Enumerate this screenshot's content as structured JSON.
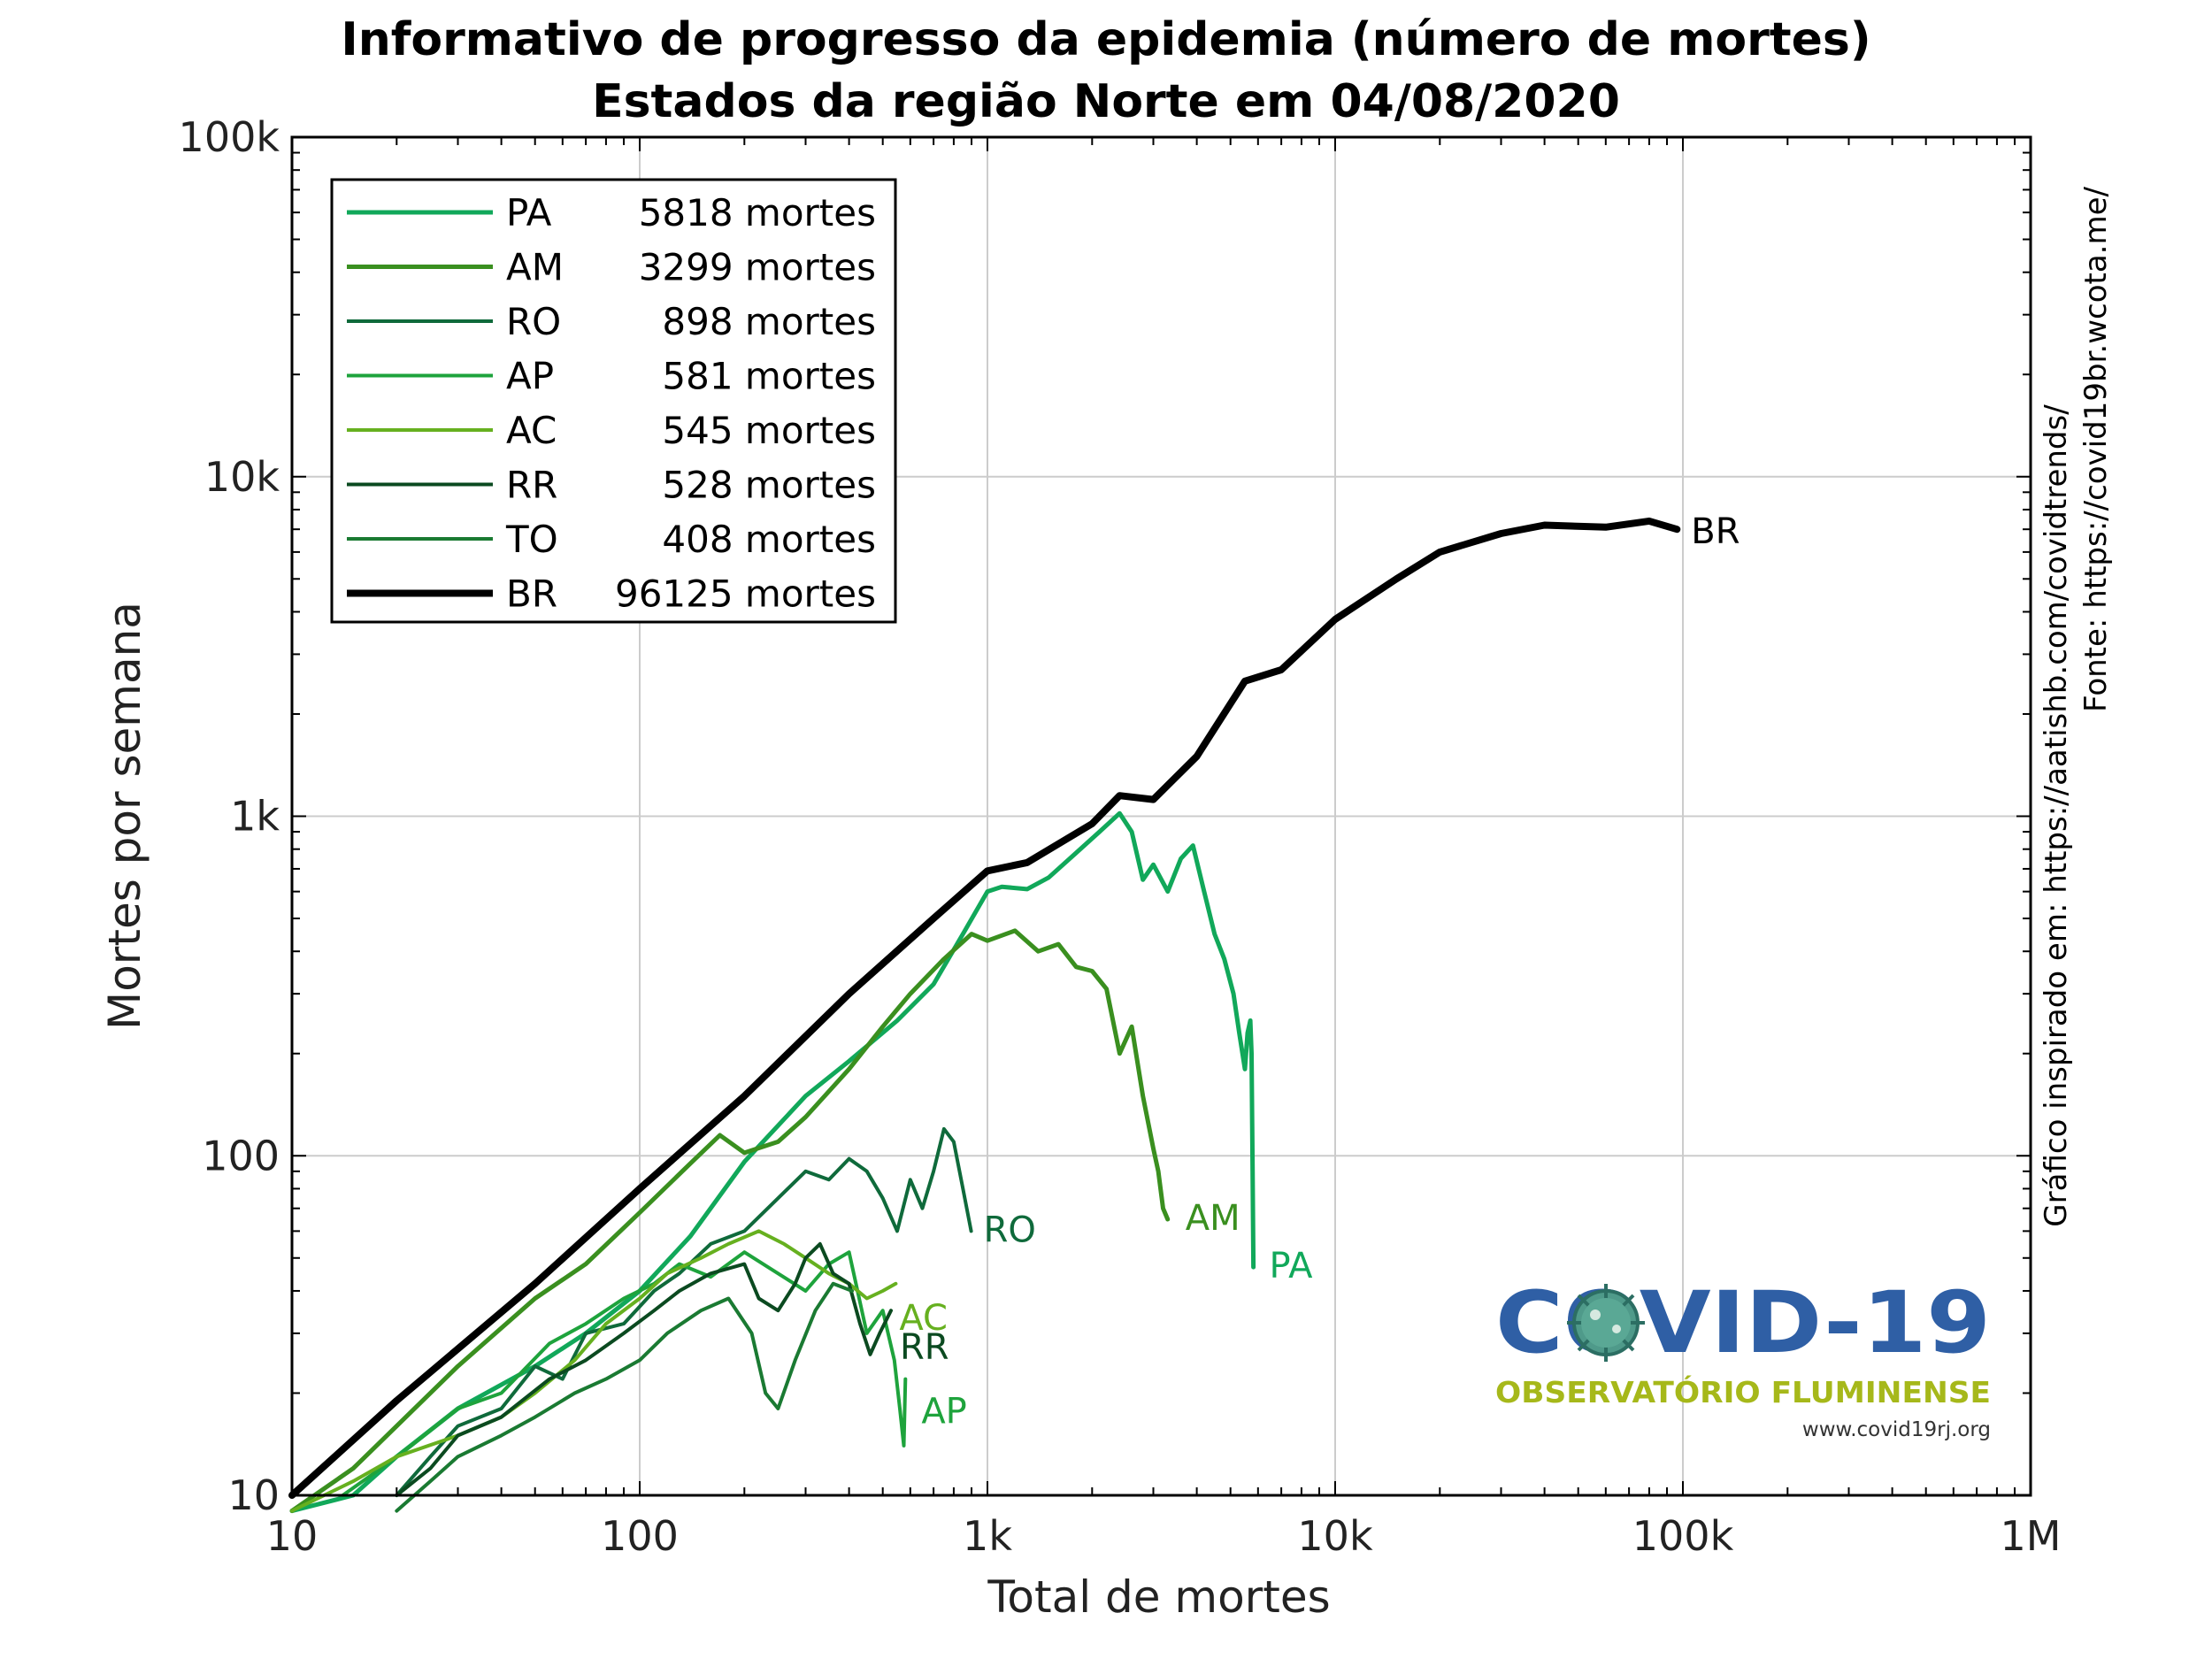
{
  "chart_data": {
    "type": "line",
    "title": "Informativo de progresso da epidemia (número de mortes)",
    "subtitle": "Estados da região Norte em 04/08/2020",
    "xlabel": "Total de mortes",
    "ylabel": "Mortes por semana",
    "x_scale": "log",
    "y_scale": "log",
    "xlim": [
      10,
      1000000
    ],
    "ylim": [
      10,
      100000
    ],
    "x_ticks": [
      {
        "value": 10,
        "label": "10"
      },
      {
        "value": 100,
        "label": "100"
      },
      {
        "value": 1000,
        "label": "1k"
      },
      {
        "value": 10000,
        "label": "10k"
      },
      {
        "value": 100000,
        "label": "100k"
      },
      {
        "value": 1000000,
        "label": "1M"
      }
    ],
    "y_ticks": [
      {
        "value": 10,
        "label": "10"
      },
      {
        "value": 100,
        "label": "100"
      },
      {
        "value": 1000,
        "label": "1k"
      },
      {
        "value": 10000,
        "label": "10k"
      },
      {
        "value": 100000,
        "label": "100k"
      }
    ],
    "grid": true,
    "legend_position": "top-left",
    "side_notes": [
      "Gráfico inspirado em: https://aatishb.com/covidtrends/",
      "Fonte: https://covid19br.wcota.me/"
    ],
    "logo": {
      "title": "COVID-19",
      "subtitle": "OBSERVATÓRIO FLUMINENSE",
      "url": "www.covid19rj.org"
    },
    "series": [
      {
        "name": "PA",
        "legend": "5818 mortes",
        "end_label": "PA",
        "color": "#11a85a",
        "width": 5,
        "points": [
          [
            10,
            9
          ],
          [
            15,
            10
          ],
          [
            20,
            13
          ],
          [
            30,
            18
          ],
          [
            50,
            24
          ],
          [
            70,
            30
          ],
          [
            100,
            40
          ],
          [
            140,
            58
          ],
          [
            200,
            96
          ],
          [
            300,
            150
          ],
          [
            400,
            190
          ],
          [
            550,
            250
          ],
          [
            700,
            320
          ],
          [
            850,
            450
          ],
          [
            1000,
            600
          ],
          [
            1100,
            620
          ],
          [
            1300,
            610
          ],
          [
            1500,
            660
          ],
          [
            1800,
            780
          ],
          [
            2100,
            900
          ],
          [
            2400,
            1020
          ],
          [
            2600,
            900
          ],
          [
            2800,
            650
          ],
          [
            3000,
            720
          ],
          [
            3300,
            600
          ],
          [
            3600,
            750
          ],
          [
            3900,
            820
          ],
          [
            4200,
            600
          ],
          [
            4500,
            450
          ],
          [
            4800,
            380
          ],
          [
            5100,
            300
          ],
          [
            5300,
            230
          ],
          [
            5500,
            180
          ],
          [
            5600,
            230
          ],
          [
            5700,
            250
          ],
          [
            5750,
            200
          ],
          [
            5790,
            90
          ],
          [
            5818,
            47
          ]
        ]
      },
      {
        "name": "AM",
        "legend": "3299 mortes",
        "end_label": "AM",
        "color": "#3a8f1f",
        "width": 5,
        "points": [
          [
            10,
            9
          ],
          [
            15,
            12
          ],
          [
            20,
            16
          ],
          [
            30,
            24
          ],
          [
            50,
            38
          ],
          [
            70,
            48
          ],
          [
            100,
            68
          ],
          [
            140,
            95
          ],
          [
            170,
            115
          ],
          [
            200,
            102
          ],
          [
            250,
            110
          ],
          [
            300,
            130
          ],
          [
            400,
            180
          ],
          [
            500,
            240
          ],
          [
            600,
            300
          ],
          [
            750,
            380
          ],
          [
            900,
            450
          ],
          [
            1000,
            430
          ],
          [
            1200,
            460
          ],
          [
            1400,
            400
          ],
          [
            1600,
            420
          ],
          [
            1800,
            360
          ],
          [
            2000,
            350
          ],
          [
            2200,
            310
          ],
          [
            2400,
            200
          ],
          [
            2600,
            240
          ],
          [
            2800,
            150
          ],
          [
            3000,
            105
          ],
          [
            3100,
            90
          ],
          [
            3200,
            70
          ],
          [
            3299,
            65
          ]
        ]
      },
      {
        "name": "RO",
        "legend": "898 mortes",
        "end_label": "RO",
        "color": "#0f6a3b",
        "width": 4,
        "points": [
          [
            20,
            10
          ],
          [
            25,
            13
          ],
          [
            30,
            16
          ],
          [
            40,
            18
          ],
          [
            50,
            24
          ],
          [
            60,
            22
          ],
          [
            70,
            30
          ],
          [
            90,
            32
          ],
          [
            110,
            40
          ],
          [
            130,
            45
          ],
          [
            160,
            55
          ],
          [
            200,
            60
          ],
          [
            250,
            75
          ],
          [
            300,
            90
          ],
          [
            350,
            85
          ],
          [
            400,
            98
          ],
          [
            450,
            90
          ],
          [
            500,
            75
          ],
          [
            550,
            60
          ],
          [
            600,
            85
          ],
          [
            650,
            70
          ],
          [
            700,
            90
          ],
          [
            750,
            120
          ],
          [
            800,
            110
          ],
          [
            850,
            80
          ],
          [
            898,
            60
          ]
        ]
      },
      {
        "name": "AP",
        "legend": "581 mortes",
        "end_label": "AP",
        "color": "#1ea33c",
        "width": 4,
        "points": [
          [
            14,
            10
          ],
          [
            18,
            12
          ],
          [
            22,
            14
          ],
          [
            30,
            18
          ],
          [
            40,
            20
          ],
          [
            55,
            28
          ],
          [
            70,
            32
          ],
          [
            90,
            38
          ],
          [
            110,
            42
          ],
          [
            130,
            48
          ],
          [
            160,
            44
          ],
          [
            200,
            52
          ],
          [
            250,
            45
          ],
          [
            300,
            40
          ],
          [
            350,
            48
          ],
          [
            400,
            52
          ],
          [
            450,
            30
          ],
          [
            500,
            35
          ],
          [
            540,
            25
          ],
          [
            560,
            18
          ],
          [
            575,
            14
          ],
          [
            581,
            22
          ]
        ]
      },
      {
        "name": "AC",
        "legend": "545 mortes",
        "end_label": "AC",
        "color": "#66b01f",
        "width": 4,
        "points": [
          [
            10,
            9
          ],
          [
            15,
            11
          ],
          [
            20,
            13
          ],
          [
            30,
            15
          ],
          [
            40,
            17
          ],
          [
            50,
            20
          ],
          [
            65,
            25
          ],
          [
            80,
            32
          ],
          [
            100,
            38
          ],
          [
            120,
            45
          ],
          [
            150,
            50
          ],
          [
            180,
            55
          ],
          [
            220,
            60
          ],
          [
            260,
            55
          ],
          [
            300,
            50
          ],
          [
            350,
            45
          ],
          [
            400,
            42
          ],
          [
            450,
            38
          ],
          [
            500,
            40
          ],
          [
            545,
            42
          ]
        ]
      },
      {
        "name": "RR",
        "legend": "528 mortes",
        "end_label": "RR",
        "color": "#0b4a20",
        "width": 4,
        "points": [
          [
            20,
            10
          ],
          [
            25,
            12
          ],
          [
            30,
            15
          ],
          [
            40,
            17
          ],
          [
            55,
            22
          ],
          [
            70,
            25
          ],
          [
            90,
            30
          ],
          [
            110,
            35
          ],
          [
            130,
            40
          ],
          [
            160,
            45
          ],
          [
            200,
            48
          ],
          [
            220,
            38
          ],
          [
            250,
            35
          ],
          [
            280,
            42
          ],
          [
            300,
            50
          ],
          [
            330,
            55
          ],
          [
            360,
            45
          ],
          [
            400,
            42
          ],
          [
            430,
            32
          ],
          [
            460,
            26
          ],
          [
            490,
            30
          ],
          [
            528,
            35
          ]
        ]
      },
      {
        "name": "TO",
        "legend": "408 mortes",
        "end_label": "",
        "color": "#1a7a32",
        "width": 4,
        "points": [
          [
            20,
            9
          ],
          [
            25,
            11
          ],
          [
            30,
            13
          ],
          [
            40,
            15
          ],
          [
            50,
            17
          ],
          [
            65,
            20
          ],
          [
            80,
            22
          ],
          [
            100,
            25
          ],
          [
            120,
            30
          ],
          [
            150,
            35
          ],
          [
            180,
            38
          ],
          [
            210,
            30
          ],
          [
            230,
            20
          ],
          [
            250,
            18
          ],
          [
            280,
            25
          ],
          [
            320,
            35
          ],
          [
            360,
            42
          ],
          [
            408,
            40
          ]
        ]
      },
      {
        "name": "BR",
        "legend": "96125 mortes",
        "end_label": "BR",
        "color": "#000000",
        "width": 8,
        "points": [
          [
            10,
            10
          ],
          [
            20,
            19
          ],
          [
            50,
            42
          ],
          [
            100,
            80
          ],
          [
            200,
            150
          ],
          [
            400,
            300
          ],
          [
            700,
            500
          ],
          [
            1000,
            690
          ],
          [
            1300,
            730
          ],
          [
            2000,
            950
          ],
          [
            2400,
            1150
          ],
          [
            3000,
            1120
          ],
          [
            4000,
            1500
          ],
          [
            5500,
            2500
          ],
          [
            7000,
            2700
          ],
          [
            10000,
            3800
          ],
          [
            15000,
            5000
          ],
          [
            20000,
            6000
          ],
          [
            30000,
            6800
          ],
          [
            40000,
            7200
          ],
          [
            60000,
            7100
          ],
          [
            80000,
            7400
          ],
          [
            96125,
            7000
          ]
        ]
      }
    ]
  }
}
